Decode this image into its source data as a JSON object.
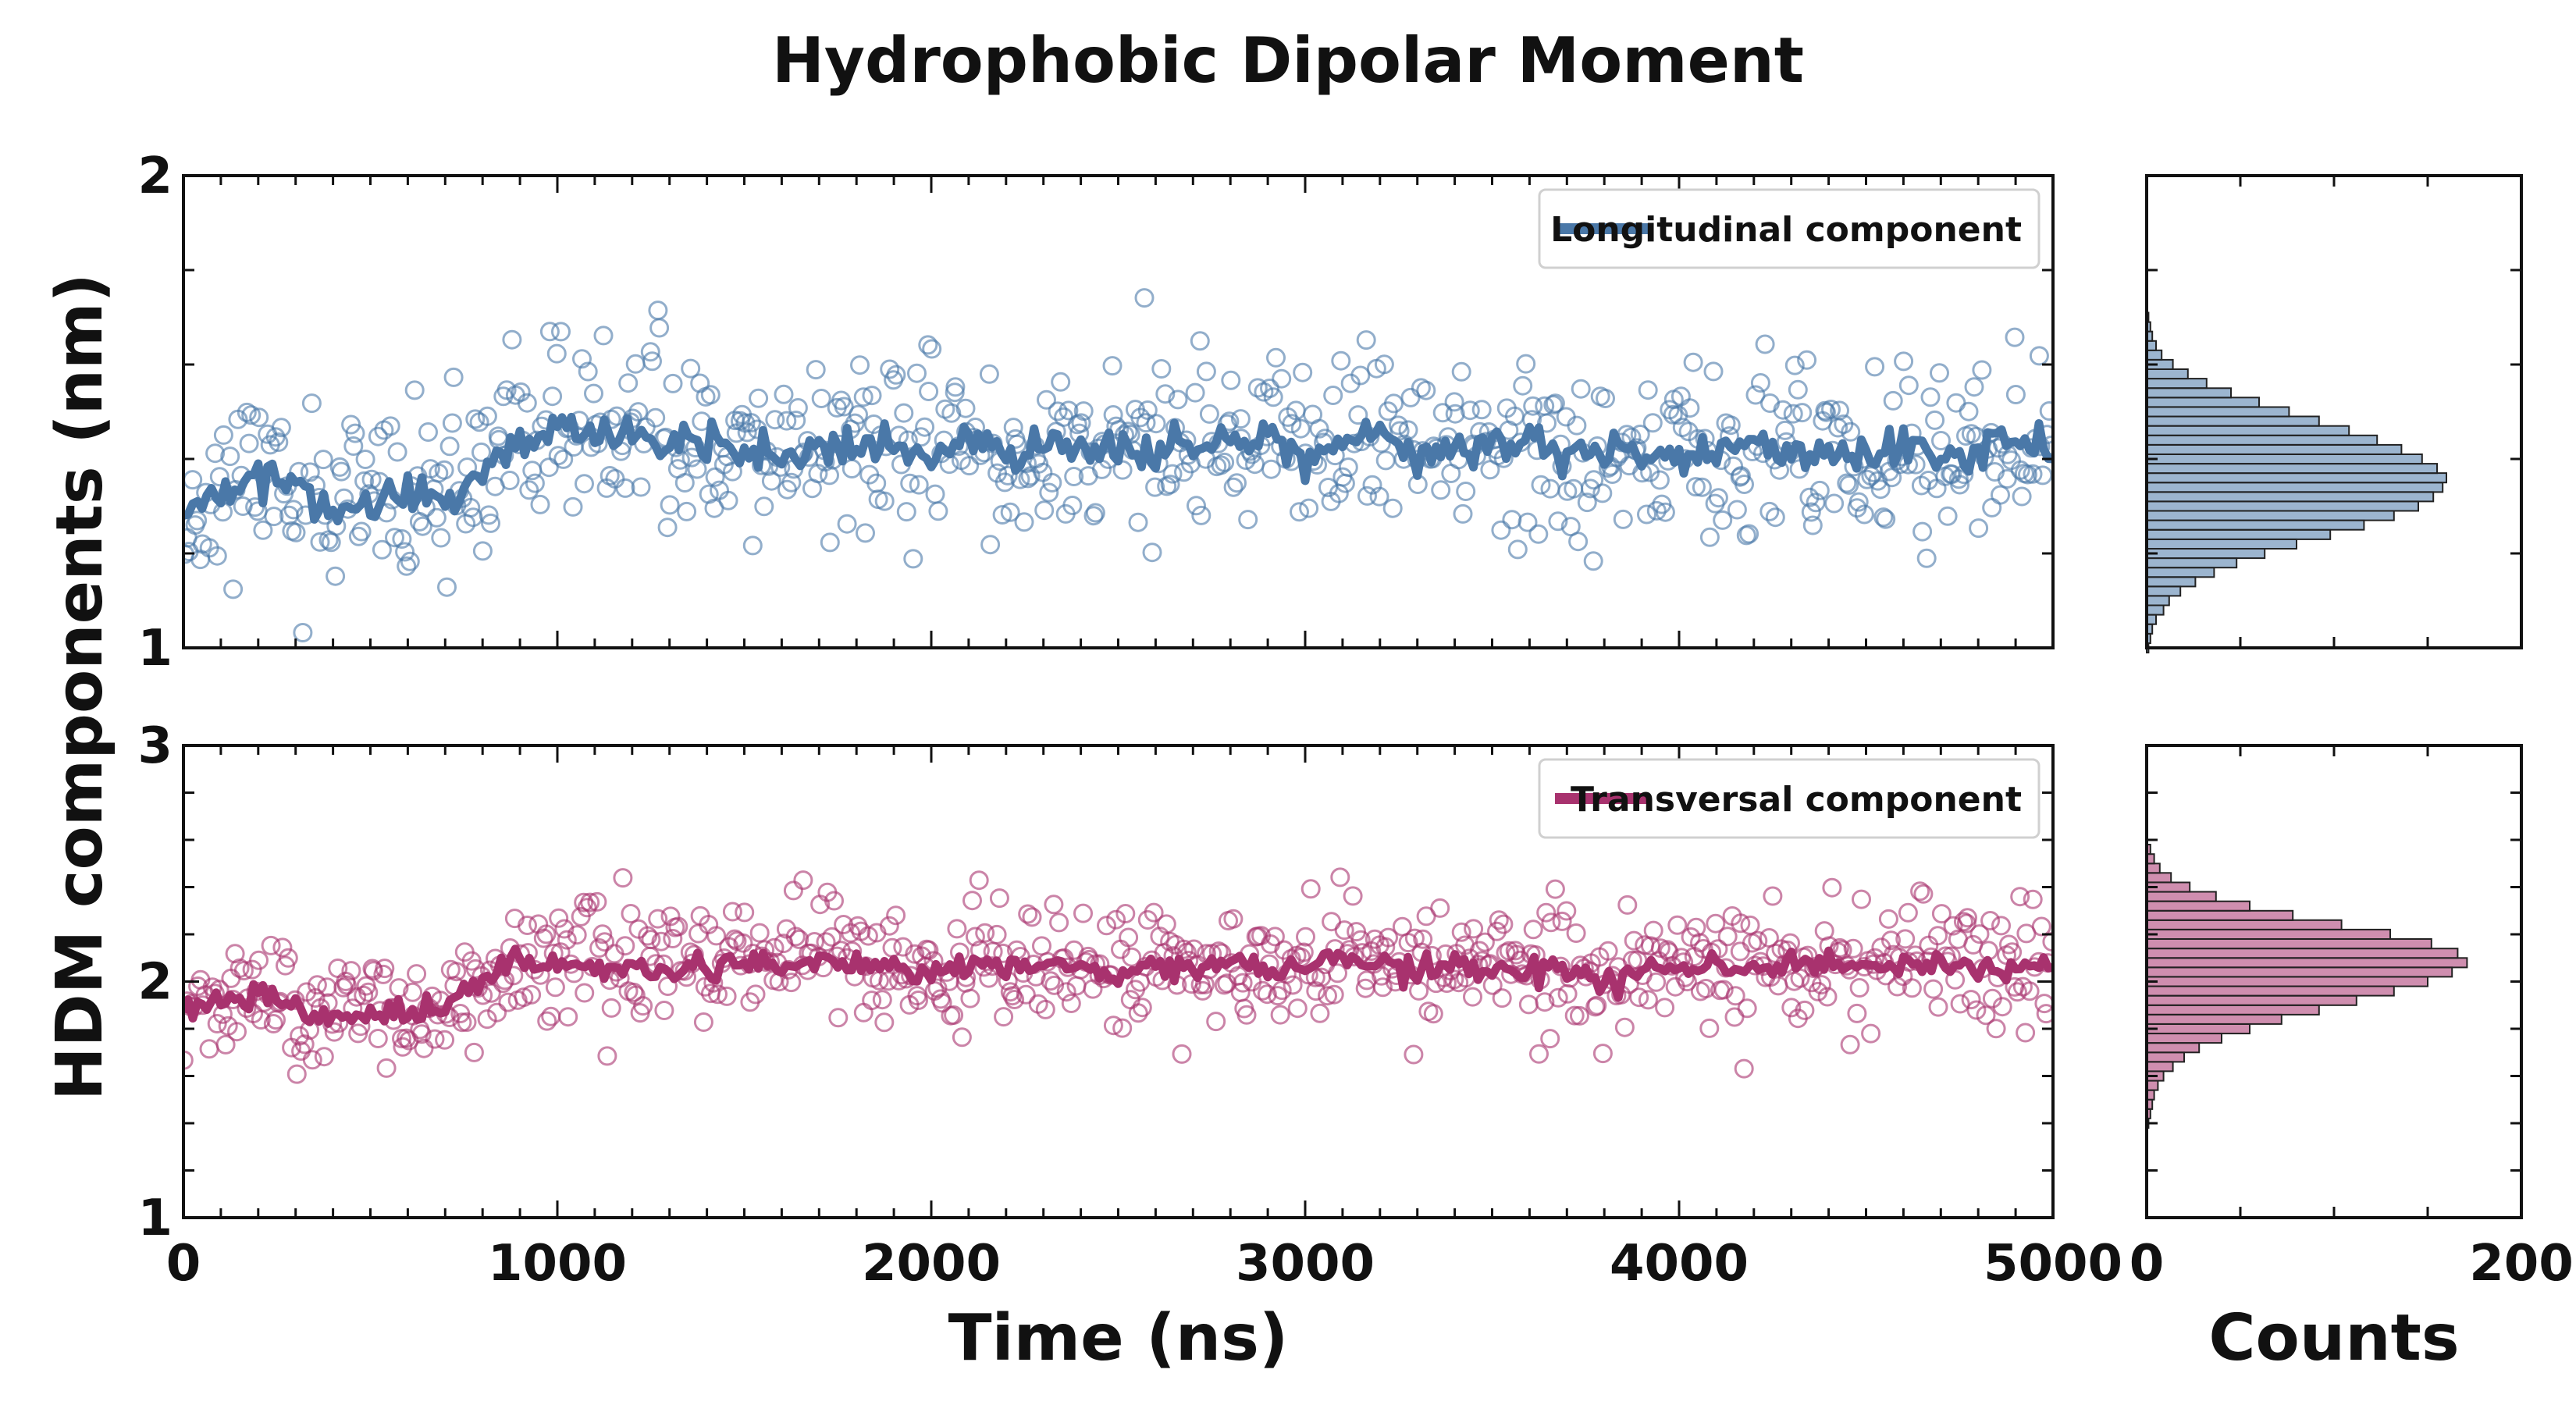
{
  "chart_data": {
    "type": "scatter",
    "title": "Hydrophobic Dipolar Moment",
    "ylabel": "HDM components (nm)",
    "colors": {
      "longitudinal": "#4a78a8",
      "transversal": "#a8326e"
    },
    "time_panels": [
      {
        "id": "longitudinal",
        "legend": "Longitudinal component",
        "xlabel": "",
        "xlim": [
          0,
          5000
        ],
        "ylim": [
          1,
          2
        ],
        "yticks": [
          {
            "value": 1,
            "label": "1"
          },
          {
            "value": 2,
            "label": "2"
          }
        ],
        "xticks": [],
        "scatter": {
          "seed": 11,
          "count": 700,
          "spread": 0.095,
          "marker": "open-circle"
        },
        "running_mean": [
          [
            0,
            1.28
          ],
          [
            100,
            1.33
          ],
          [
            200,
            1.38
          ],
          [
            300,
            1.32
          ],
          [
            400,
            1.29
          ],
          [
            500,
            1.31
          ],
          [
            600,
            1.33
          ],
          [
            700,
            1.3
          ],
          [
            800,
            1.38
          ],
          [
            900,
            1.43
          ],
          [
            1000,
            1.47
          ],
          [
            1100,
            1.44
          ],
          [
            1200,
            1.46
          ],
          [
            1300,
            1.43
          ],
          [
            1400,
            1.45
          ],
          [
            1500,
            1.44
          ],
          [
            1600,
            1.41
          ],
          [
            1700,
            1.42
          ],
          [
            1800,
            1.44
          ],
          [
            1900,
            1.43
          ],
          [
            2000,
            1.42
          ],
          [
            2100,
            1.44
          ],
          [
            2200,
            1.4
          ],
          [
            2300,
            1.43
          ],
          [
            2400,
            1.42
          ],
          [
            2500,
            1.42
          ],
          [
            2600,
            1.41
          ],
          [
            2700,
            1.43
          ],
          [
            2800,
            1.44
          ],
          [
            2900,
            1.46
          ],
          [
            3000,
            1.4
          ],
          [
            3100,
            1.42
          ],
          [
            3200,
            1.45
          ],
          [
            3300,
            1.4
          ],
          [
            3400,
            1.43
          ],
          [
            3500,
            1.41
          ],
          [
            3600,
            1.43
          ],
          [
            3700,
            1.41
          ],
          [
            3800,
            1.43
          ],
          [
            3900,
            1.4
          ],
          [
            4000,
            1.42
          ],
          [
            4100,
            1.41
          ],
          [
            4200,
            1.44
          ],
          [
            4300,
            1.41
          ],
          [
            4400,
            1.43
          ],
          [
            4500,
            1.41
          ],
          [
            4600,
            1.43
          ],
          [
            4700,
            1.4
          ],
          [
            4800,
            1.42
          ],
          [
            4900,
            1.44
          ],
          [
            5000,
            1.4
          ]
        ]
      },
      {
        "id": "transversal",
        "legend": "Transversal component",
        "xlabel": "Time (ns)",
        "xlim": [
          0,
          5000
        ],
        "ylim": [
          1,
          3
        ],
        "yticks": [
          {
            "value": 1,
            "label": "1"
          },
          {
            "value": 2,
            "label": "2"
          },
          {
            "value": 3,
            "label": "3"
          }
        ],
        "xticks": [
          {
            "value": 0,
            "label": "0"
          },
          {
            "value": 1000,
            "label": "1000"
          },
          {
            "value": 2000,
            "label": "2000"
          },
          {
            "value": 3000,
            "label": "3000"
          },
          {
            "value": 4000,
            "label": "4000"
          },
          {
            "value": 5000,
            "label": "5000"
          }
        ],
        "scatter": {
          "seed": 23,
          "count": 700,
          "spread": 0.13,
          "marker": "open-circle"
        },
        "running_mean": [
          [
            0,
            1.87
          ],
          [
            100,
            1.91
          ],
          [
            200,
            1.95
          ],
          [
            300,
            1.9
          ],
          [
            400,
            1.85
          ],
          [
            500,
            1.86
          ],
          [
            600,
            1.88
          ],
          [
            700,
            1.89
          ],
          [
            800,
            2.0
          ],
          [
            900,
            2.1
          ],
          [
            1000,
            2.05
          ],
          [
            1100,
            2.07
          ],
          [
            1200,
            2.06
          ],
          [
            1300,
            2.04
          ],
          [
            1400,
            2.06
          ],
          [
            1500,
            2.08
          ],
          [
            1600,
            2.07
          ],
          [
            1700,
            2.08
          ],
          [
            1800,
            2.06
          ],
          [
            1900,
            2.07
          ],
          [
            2000,
            2.05
          ],
          [
            2100,
            2.08
          ],
          [
            2200,
            2.06
          ],
          [
            2300,
            2.07
          ],
          [
            2400,
            2.06
          ],
          [
            2500,
            2.05
          ],
          [
            2600,
            2.08
          ],
          [
            2700,
            2.06
          ],
          [
            2800,
            2.07
          ],
          [
            2900,
            2.05
          ],
          [
            3000,
            2.06
          ],
          [
            3100,
            2.1
          ],
          [
            3200,
            2.07
          ],
          [
            3300,
            2.05
          ],
          [
            3400,
            2.06
          ],
          [
            3500,
            2.07
          ],
          [
            3600,
            2.05
          ],
          [
            3700,
            2.06
          ],
          [
            3800,
            1.99
          ],
          [
            3900,
            2.05
          ],
          [
            4000,
            2.06
          ],
          [
            4100,
            2.07
          ],
          [
            4200,
            2.05
          ],
          [
            4300,
            2.09
          ],
          [
            4400,
            2.05
          ],
          [
            4500,
            2.08
          ],
          [
            4600,
            2.06
          ],
          [
            4700,
            2.08
          ],
          [
            4800,
            2.05
          ],
          [
            4900,
            2.07
          ],
          [
            5000,
            2.06
          ]
        ]
      }
    ],
    "histogram_panels": [
      {
        "id": "longitudinal",
        "xlabel": "",
        "xlim": [
          0,
          200
        ],
        "ylim": [
          1,
          2
        ],
        "xticks": [],
        "bins": [
          {
            "y": 1.0,
            "count": 1
          },
          {
            "y": 1.02,
            "count": 2
          },
          {
            "y": 1.04,
            "count": 3
          },
          {
            "y": 1.06,
            "count": 5
          },
          {
            "y": 1.08,
            "count": 9
          },
          {
            "y": 1.1,
            "count": 12
          },
          {
            "y": 1.12,
            "count": 18
          },
          {
            "y": 1.14,
            "count": 26
          },
          {
            "y": 1.16,
            "count": 36
          },
          {
            "y": 1.18,
            "count": 48
          },
          {
            "y": 1.2,
            "count": 63
          },
          {
            "y": 1.22,
            "count": 80
          },
          {
            "y": 1.24,
            "count": 98
          },
          {
            "y": 1.26,
            "count": 116
          },
          {
            "y": 1.28,
            "count": 132
          },
          {
            "y": 1.3,
            "count": 145
          },
          {
            "y": 1.32,
            "count": 153
          },
          {
            "y": 1.34,
            "count": 158
          },
          {
            "y": 1.36,
            "count": 160
          },
          {
            "y": 1.38,
            "count": 155
          },
          {
            "y": 1.4,
            "count": 147
          },
          {
            "y": 1.42,
            "count": 136
          },
          {
            "y": 1.44,
            "count": 123
          },
          {
            "y": 1.46,
            "count": 108
          },
          {
            "y": 1.48,
            "count": 92
          },
          {
            "y": 1.5,
            "count": 76
          },
          {
            "y": 1.52,
            "count": 60
          },
          {
            "y": 1.54,
            "count": 45
          },
          {
            "y": 1.56,
            "count": 32
          },
          {
            "y": 1.58,
            "count": 22
          },
          {
            "y": 1.6,
            "count": 14
          },
          {
            "y": 1.62,
            "count": 8
          },
          {
            "y": 1.64,
            "count": 5
          },
          {
            "y": 1.66,
            "count": 3
          },
          {
            "y": 1.68,
            "count": 2
          },
          {
            "y": 1.7,
            "count": 1
          }
        ]
      },
      {
        "id": "transversal",
        "xlabel": "Counts",
        "xlim": [
          0,
          200
        ],
        "ylim": [
          1,
          3
        ],
        "xticks": [
          {
            "value": 0,
            "label": "0"
          },
          {
            "value": 200,
            "label": "200"
          }
        ],
        "bins": [
          {
            "y": 1.4,
            "count": 1
          },
          {
            "y": 1.44,
            "count": 2
          },
          {
            "y": 1.48,
            "count": 3
          },
          {
            "y": 1.52,
            "count": 4
          },
          {
            "y": 1.56,
            "count": 6
          },
          {
            "y": 1.6,
            "count": 9
          },
          {
            "y": 1.64,
            "count": 14
          },
          {
            "y": 1.68,
            "count": 20
          },
          {
            "y": 1.72,
            "count": 28
          },
          {
            "y": 1.76,
            "count": 40
          },
          {
            "y": 1.8,
            "count": 55
          },
          {
            "y": 1.84,
            "count": 72
          },
          {
            "y": 1.88,
            "count": 92
          },
          {
            "y": 1.92,
            "count": 112
          },
          {
            "y": 1.96,
            "count": 132
          },
          {
            "y": 2.0,
            "count": 150
          },
          {
            "y": 2.04,
            "count": 163
          },
          {
            "y": 2.08,
            "count": 171
          },
          {
            "y": 2.12,
            "count": 166
          },
          {
            "y": 2.16,
            "count": 152
          },
          {
            "y": 2.2,
            "count": 130
          },
          {
            "y": 2.24,
            "count": 104
          },
          {
            "y": 2.28,
            "count": 78
          },
          {
            "y": 2.32,
            "count": 55
          },
          {
            "y": 2.36,
            "count": 37
          },
          {
            "y": 2.4,
            "count": 23
          },
          {
            "y": 2.44,
            "count": 13
          },
          {
            "y": 2.48,
            "count": 7
          },
          {
            "y": 2.52,
            "count": 4
          },
          {
            "y": 2.56,
            "count": 2
          }
        ]
      }
    ]
  }
}
